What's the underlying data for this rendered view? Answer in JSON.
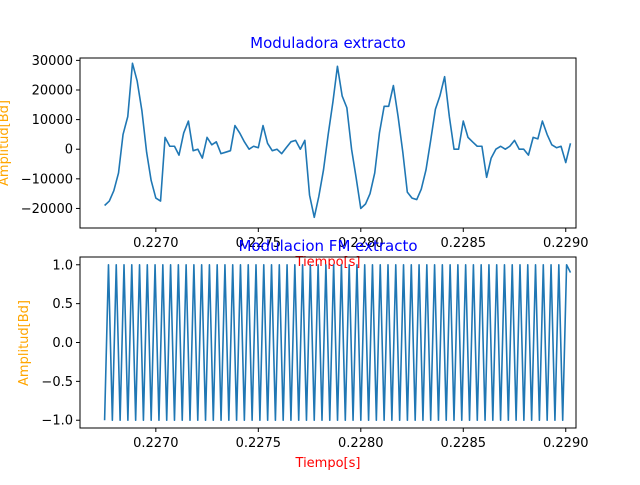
{
  "colors": {
    "title": "#0000ff",
    "xlabel": "#ff0000",
    "ylabel": "#ffa500",
    "series": "#1f77b4",
    "background": "#ffffff",
    "axis": "#000000"
  },
  "chart_data": [
    {
      "type": "line",
      "title": "Moduladora extracto",
      "xlabel": "Tiempo[s]",
      "ylabel": "Amplitud[Bd]",
      "xlim": [
        0.22663,
        0.22905
      ],
      "ylim": [
        -26600,
        30800
      ],
      "xticks": [
        "0.2270",
        "0.2275",
        "0.2280",
        "0.2285",
        "0.2290"
      ],
      "xtick_values": [
        0.227,
        0.2275,
        0.228,
        0.2285,
        0.229
      ],
      "yticks": [
        "−20000",
        "−10000",
        "0",
        "10000",
        "20000",
        "30000"
      ],
      "ytick_values": [
        -20000,
        -10000,
        0,
        10000,
        20000,
        30000
      ],
      "grid": false,
      "series": [
        {
          "x": [
            0.22675,
            0.226773,
            0.226795,
            0.226818,
            0.22684,
            0.226863,
            0.226886,
            0.226909,
            0.226932,
            0.226955,
            0.226977,
            0.227,
            0.227023,
            0.227045,
            0.227068,
            0.227091,
            0.227113,
            0.227136,
            0.227159,
            0.227182,
            0.227205,
            0.227227,
            0.22725,
            0.227273,
            0.227295,
            0.227318,
            0.227341,
            0.227364,
            0.227386,
            0.227409,
            0.227432,
            0.227455,
            0.227477,
            0.2275,
            0.227523,
            0.227545,
            0.227568,
            0.227591,
            0.227614,
            0.227636,
            0.227659,
            0.227682,
            0.227705,
            0.227727,
            0.22775,
            0.227773,
            0.227795,
            0.227818,
            0.227841,
            0.227864,
            0.227886,
            0.227909,
            0.227932,
            0.227955,
            0.227977,
            0.228,
            0.228023,
            0.228045,
            0.228068,
            0.228091,
            0.228114,
            0.228136,
            0.228159,
            0.228182,
            0.228205,
            0.228227,
            0.22825,
            0.228273,
            0.228295,
            0.228318,
            0.228341,
            0.228364,
            0.228386,
            0.228409,
            0.228432,
            0.228455,
            0.228477,
            0.2285,
            0.228523,
            0.228545,
            0.228568,
            0.228591,
            0.228614,
            0.228636,
            0.228659,
            0.228682,
            0.228705,
            0.228727,
            0.22875,
            0.228773,
            0.228795,
            0.228818,
            0.228841,
            0.228864,
            0.228886,
            0.228909,
            0.228932,
            0.228955,
            0.228977,
            0.229,
            0.229023
          ],
          "y": [
            -19000,
            -17500,
            -14000,
            -8000,
            5000,
            11000,
            29000,
            23000,
            13000,
            -1000,
            -10500,
            -16500,
            -17500,
            4000,
            1000,
            1000,
            -2000,
            5500,
            9500,
            -500,
            0,
            -3000,
            4000,
            1500,
            2500,
            -1500,
            -1000,
            -500,
            8000,
            5500,
            2500,
            0,
            1000,
            500,
            8000,
            2000,
            -500,
            0,
            -1500,
            500,
            2500,
            3000,
            0,
            3000,
            -15500,
            -23000,
            -16000,
            -7000,
            5000,
            16000,
            28000,
            18000,
            14000,
            0,
            -9500,
            -20000,
            -18500,
            -15000,
            -8000,
            5500,
            14500,
            14500,
            21500,
            11000,
            -1000,
            -14500,
            -16500,
            -17000,
            -13500,
            -7000,
            3000,
            13500,
            18000,
            24500,
            11000,
            0,
            0,
            9500,
            4000,
            2500,
            1000,
            1000,
            -9500,
            -3000,
            0,
            1000,
            0,
            1000,
            3000,
            0,
            0,
            -2000,
            4000,
            3500,
            9500,
            5000,
            1500,
            500,
            1000,
            -4500,
            2000
          ]
        }
      ]
    },
    {
      "type": "line",
      "title": "Modulacion FM extracto",
      "xlabel": "Tiempo[s]",
      "ylabel": "Amplitud[Bd]",
      "xlim": [
        0.22663,
        0.22905
      ],
      "ylim": [
        -1.1,
        1.1
      ],
      "xticks": [
        "0.2270",
        "0.2275",
        "0.2280",
        "0.2285",
        "0.2290"
      ],
      "xtick_values": [
        0.227,
        0.2275,
        0.228,
        0.2285,
        0.229
      ],
      "yticks": [
        "−1.0",
        "−0.5",
        "0.0",
        "0.5",
        "1.0"
      ],
      "ytick_values": [
        -1.0,
        -0.5,
        0.0,
        0.5,
        1.0
      ],
      "grid": false,
      "series": [
        {
          "x_start": 0.22675,
          "x_end": 0.229023,
          "cycles": 60,
          "amplitude": 1.0,
          "y_start": -1.0,
          "y_end": 0.9
        }
      ]
    }
  ]
}
